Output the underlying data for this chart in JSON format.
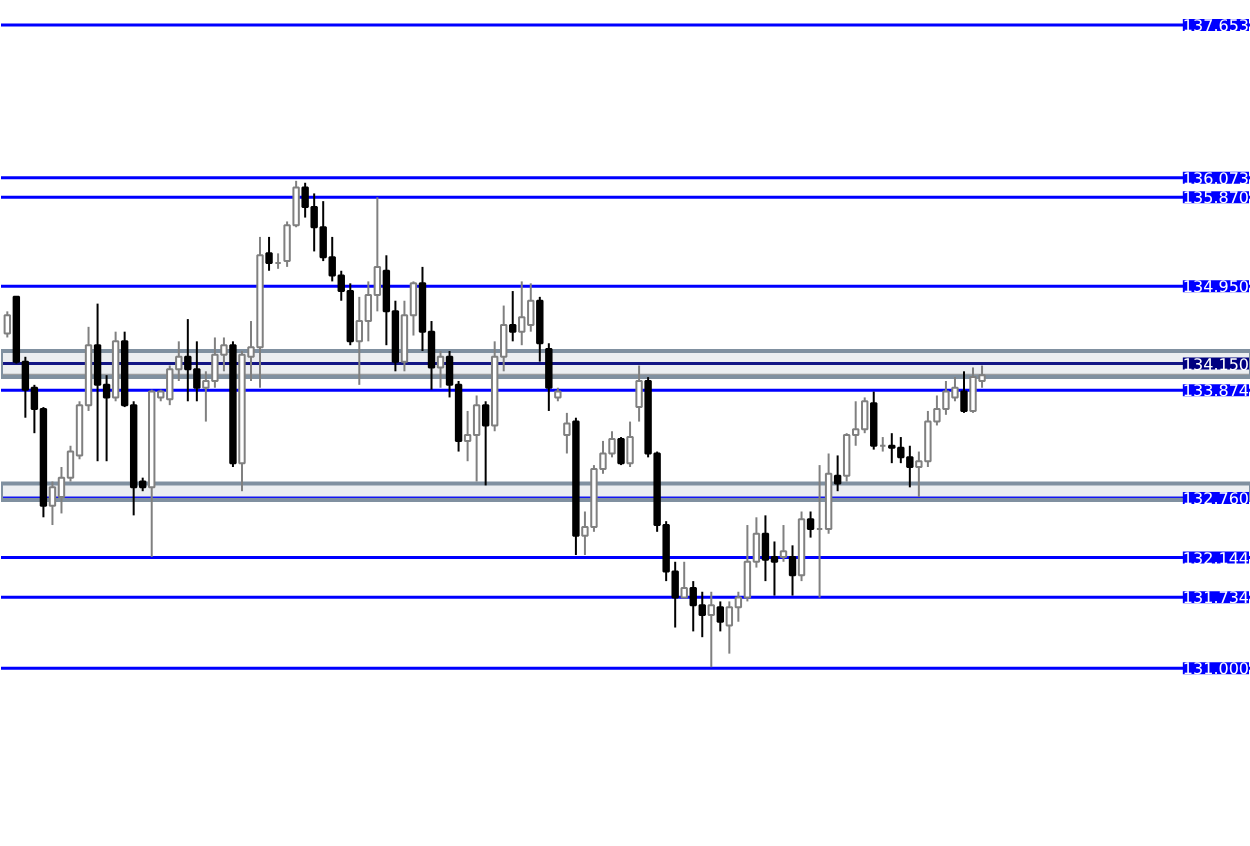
{
  "chart_data": {
    "type": "candlestick",
    "categories": [
      null,
      null,
      null,
      null,
      null,
      null,
      null,
      null,
      null,
      null,
      null,
      null,
      null,
      null,
      null,
      null,
      null,
      null,
      null,
      null,
      null,
      null,
      null,
      null,
      null,
      null,
      null,
      null,
      null,
      null,
      null,
      null,
      null,
      null,
      null,
      null,
      null,
      null,
      null,
      null,
      null,
      null,
      null,
      null,
      null,
      null,
      null,
      null,
      null,
      null,
      null,
      null,
      null,
      null,
      null,
      null,
      null,
      null,
      null,
      null,
      null,
      null,
      null,
      null,
      null,
      null,
      null,
      null,
      null,
      null,
      null,
      null,
      null,
      null,
      null,
      null,
      null,
      null,
      null,
      null,
      null,
      null,
      null,
      null,
      null,
      null,
      null,
      null,
      null,
      null,
      null,
      null,
      null,
      null,
      null,
      null,
      null,
      null,
      null,
      null,
      null,
      null,
      null,
      null,
      null,
      null,
      null,
      null,
      null
    ],
    "ohlc": [
      [
        134.46,
        134.69,
        134.42,
        134.65
      ],
      [
        134.84,
        134.84,
        134.15,
        134.17
      ],
      [
        134.17,
        134.22,
        133.59,
        133.88
      ],
      [
        133.9,
        133.93,
        133.43,
        133.68
      ],
      [
        133.68,
        133.7,
        132.56,
        132.68
      ],
      [
        132.68,
        132.93,
        132.48,
        132.87
      ],
      [
        132.77,
        133.08,
        132.6,
        132.97
      ],
      [
        132.97,
        133.3,
        132.93,
        133.24
      ],
      [
        133.2,
        133.76,
        133.16,
        133.72
      ],
      [
        133.72,
        134.53,
        133.66,
        134.34
      ],
      [
        134.34,
        134.77,
        133.14,
        133.93
      ],
      [
        133.93,
        134.03,
        133.14,
        133.8
      ],
      [
        133.8,
        134.48,
        133.76,
        134.38
      ],
      [
        134.38,
        134.48,
        133.7,
        133.72
      ],
      [
        133.72,
        133.76,
        132.58,
        132.87
      ],
      [
        132.93,
        132.97,
        132.83,
        132.87
      ],
      [
        132.87,
        133.88,
        132.15,
        133.86
      ],
      [
        133.8,
        133.88,
        133.76,
        133.86
      ],
      [
        133.78,
        134.13,
        133.72,
        134.09
      ],
      [
        134.09,
        134.38,
        133.97,
        134.22
      ],
      [
        134.22,
        134.61,
        133.76,
        134.09
      ],
      [
        134.09,
        134.38,
        133.76,
        133.9
      ],
      [
        133.9,
        134.07,
        133.55,
        133.97
      ],
      [
        133.97,
        134.42,
        133.9,
        134.24
      ],
      [
        134.24,
        134.42,
        134.07,
        134.34
      ],
      [
        134.34,
        134.38,
        133.08,
        133.12
      ],
      [
        133.12,
        134.28,
        132.83,
        134.24
      ],
      [
        134.22,
        134.59,
        133.97,
        134.32
      ],
      [
        134.32,
        135.46,
        133.9,
        135.27
      ],
      [
        135.29,
        135.46,
        135.11,
        135.19
      ],
      [
        135.19,
        135.29,
        135.13,
        135.19
      ],
      [
        135.21,
        135.62,
        135.15,
        135.58
      ],
      [
        135.58,
        136.04,
        135.56,
        135.97
      ],
      [
        135.97,
        136.02,
        135.66,
        135.77
      ],
      [
        135.77,
        135.91,
        135.31,
        135.56
      ],
      [
        135.56,
        135.83,
        135.21,
        135.25
      ],
      [
        135.25,
        135.46,
        135.0,
        135.06
      ],
      [
        135.06,
        135.11,
        134.8,
        134.9
      ],
      [
        134.9,
        134.98,
        134.34,
        134.38
      ],
      [
        134.38,
        134.84,
        133.93,
        134.59
      ],
      [
        134.59,
        135.0,
        134.38,
        134.86
      ],
      [
        134.86,
        135.87,
        134.69,
        135.15
      ],
      [
        135.11,
        135.27,
        134.34,
        134.69
      ],
      [
        134.69,
        134.8,
        134.07,
        134.17
      ],
      [
        134.17,
        134.8,
        134.07,
        134.65
      ],
      [
        134.65,
        135.0,
        134.44,
        134.98
      ],
      [
        134.98,
        135.15,
        134.28,
        134.48
      ],
      [
        134.48,
        134.59,
        133.88,
        134.11
      ],
      [
        134.11,
        134.28,
        133.9,
        134.22
      ],
      [
        134.22,
        134.28,
        133.8,
        133.93
      ],
      [
        133.93,
        133.97,
        133.24,
        133.35
      ],
      [
        133.35,
        133.66,
        133.14,
        133.41
      ],
      [
        133.41,
        133.82,
        132.93,
        133.72
      ],
      [
        133.72,
        133.76,
        132.89,
        133.51
      ],
      [
        133.51,
        134.38,
        133.45,
        134.22
      ],
      [
        134.22,
        134.75,
        134.07,
        134.55
      ],
      [
        134.55,
        134.9,
        134.38,
        134.48
      ],
      [
        134.48,
        135.0,
        134.34,
        134.63
      ],
      [
        134.55,
        134.98,
        134.48,
        134.8
      ],
      [
        134.8,
        134.84,
        134.17,
        134.36
      ],
      [
        134.3,
        134.36,
        133.66,
        133.9
      ],
      [
        133.8,
        133.9,
        133.76,
        133.86
      ],
      [
        133.41,
        133.64,
        133.22,
        133.53
      ],
      [
        133.55,
        133.59,
        132.17,
        132.37
      ],
      [
        132.37,
        132.62,
        132.17,
        132.46
      ],
      [
        132.46,
        133.1,
        132.41,
        133.06
      ],
      [
        133.06,
        133.35,
        133.01,
        133.22
      ],
      [
        133.22,
        133.45,
        133.18,
        133.37
      ],
      [
        133.37,
        133.39,
        133.1,
        133.12
      ],
      [
        133.12,
        133.55,
        133.08,
        133.39
      ],
      [
        133.7,
        134.13,
        133.55,
        133.97
      ],
      [
        133.97,
        134.01,
        133.18,
        133.22
      ],
      [
        133.22,
        133.24,
        132.41,
        132.48
      ],
      [
        132.48,
        132.52,
        131.9,
        132.0
      ],
      [
        132.0,
        132.1,
        131.42,
        131.73
      ],
      [
        131.73,
        132.1,
        131.73,
        131.83
      ],
      [
        131.83,
        131.9,
        131.38,
        131.65
      ],
      [
        131.65,
        131.79,
        131.32,
        131.55
      ],
      [
        131.55,
        131.79,
        131.01,
        131.65
      ],
      [
        131.63,
        131.69,
        131.38,
        131.48
      ],
      [
        131.44,
        131.69,
        131.15,
        131.63
      ],
      [
        131.63,
        131.79,
        131.48,
        131.73
      ],
      [
        131.73,
        132.48,
        131.69,
        132.1
      ],
      [
        132.1,
        132.56,
        132.04,
        132.39
      ],
      [
        132.39,
        132.58,
        131.9,
        132.12
      ],
      [
        132.15,
        132.31,
        131.75,
        132.1
      ],
      [
        132.15,
        132.48,
        132.1,
        132.21
      ],
      [
        132.15,
        132.27,
        131.75,
        131.96
      ],
      [
        131.96,
        132.62,
        131.9,
        132.54
      ],
      [
        132.54,
        132.62,
        132.35,
        132.44
      ],
      [
        132.44,
        133.1,
        131.73,
        132.44
      ],
      [
        132.44,
        133.22,
        132.39,
        133.01
      ],
      [
        132.99,
        133.2,
        132.83,
        132.91
      ],
      [
        132.99,
        133.43,
        132.93,
        133.41
      ],
      [
        133.41,
        133.76,
        133.3,
        133.47
      ],
      [
        133.47,
        133.8,
        133.43,
        133.76
      ],
      [
        133.74,
        133.86,
        133.26,
        133.3
      ],
      [
        133.3,
        133.39,
        133.24,
        133.3
      ],
      [
        133.3,
        133.43,
        133.12,
        133.28
      ],
      [
        133.28,
        133.39,
        133.12,
        133.18
      ],
      [
        133.18,
        133.3,
        132.87,
        133.08
      ],
      [
        133.08,
        133.24,
        132.77,
        133.14
      ],
      [
        133.14,
        133.66,
        133.08,
        133.55
      ],
      [
        133.55,
        133.82,
        133.51,
        133.68
      ],
      [
        133.68,
        133.97,
        133.62,
        133.86
      ],
      [
        133.8,
        134.01,
        133.76,
        133.9
      ],
      [
        133.86,
        134.07,
        133.64,
        133.66
      ],
      [
        133.66,
        134.11,
        133.64,
        134.01
      ],
      [
        133.97,
        134.13,
        133.9,
        134.03
      ]
    ],
    "ylim": [
      129.15,
      137.9
    ],
    "tick_labels": false,
    "grid": false,
    "ref_lines": [
      {
        "axis": "y",
        "value": 137.653,
        "label": "137.653",
        "color": "#0000ff"
      },
      {
        "axis": "y",
        "value": 136.073,
        "label": "136.073",
        "color": "#0000ff"
      },
      {
        "axis": "y",
        "value": 135.87,
        "label": "135.870",
        "color": "#0000ff"
      },
      {
        "axis": "y",
        "value": 134.95,
        "label": "134.950",
        "color": "#0000ff"
      },
      {
        "axis": "y",
        "value": 134.15,
        "label": "134.150",
        "color": "#000080"
      },
      {
        "axis": "y",
        "value": 134.03,
        "label": null,
        "color": "#a0a0a0"
      },
      {
        "axis": "y",
        "value": 133.874,
        "label": "133.874",
        "color": "#0000ff"
      },
      {
        "axis": "y",
        "value": 132.76,
        "label": "132.760",
        "color": "#0000ff"
      },
      {
        "axis": "y",
        "value": 132.144,
        "label": "132.144",
        "color": "#0000ff"
      },
      {
        "axis": "y",
        "value": 131.734,
        "label": "131.734",
        "color": "#0000ff"
      },
      {
        "axis": "y",
        "value": 131.0,
        "label": "131.000",
        "color": "#0000ff"
      }
    ],
    "bands": [
      {
        "axis": "y",
        "from": 134.01,
        "to": 134.28,
        "label": null,
        "color": "#8090a0"
      },
      {
        "axis": "y",
        "from": 132.74,
        "to": 132.91,
        "label": null,
        "color": "#8090a0"
      }
    ]
  }
}
